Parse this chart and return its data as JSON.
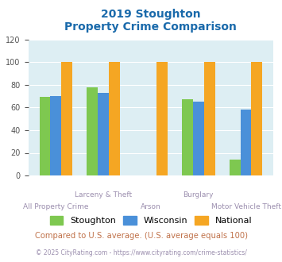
{
  "title_line1": "2019 Stoughton",
  "title_line2": "Property Crime Comparison",
  "categories": [
    "All Property Crime",
    "Larceny & Theft",
    "Arson",
    "Burglary",
    "Motor Vehicle Theft"
  ],
  "x_labels_top": [
    "",
    "Larceny & Theft",
    "",
    "Burglary",
    ""
  ],
  "x_labels_bot": [
    "All Property Crime",
    "",
    "Arson",
    "",
    "Motor Vehicle Theft"
  ],
  "stoughton": [
    69,
    78,
    0,
    67,
    14
  ],
  "wisconsin": [
    70,
    73,
    0,
    65,
    58
  ],
  "national": [
    100,
    100,
    100,
    100,
    100
  ],
  "color_stoughton": "#7ec850",
  "color_wisconsin": "#4a90d9",
  "color_national": "#f5a623",
  "ylabel_max": 120,
  "yticks": [
    0,
    20,
    40,
    60,
    80,
    100,
    120
  ],
  "bg_color": "#ddeef3",
  "note": "Compared to U.S. average. (U.S. average equals 100)",
  "footer": "© 2025 CityRating.com - https://www.cityrating.com/crime-statistics/",
  "title_color": "#1a6aab",
  "xlabel_color": "#9b8eae",
  "note_color": "#c0724a",
  "footer_color": "#9b8eae"
}
